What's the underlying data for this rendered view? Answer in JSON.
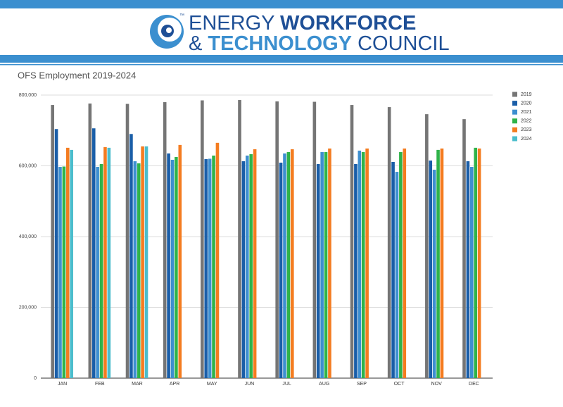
{
  "header": {
    "word1": "ENERGY",
    "word2": "WORKFORCE",
    "word3": "& ",
    "word4": "TECHNOLOGY",
    "word5": "COUNCIL",
    "tm": "™"
  },
  "chart_data": {
    "type": "bar",
    "title": "OFS Employment 2019-2024",
    "categories": [
      "JAN",
      "FEB",
      "MAR",
      "APR",
      "MAY",
      "JUN",
      "JUL",
      "AUG",
      "SEP",
      "OCT",
      "NOV",
      "DEC"
    ],
    "series": [
      {
        "name": "2019",
        "color": "#757575",
        "values": [
          772000,
          776000,
          775000,
          780000,
          785000,
          786000,
          782000,
          781000,
          772000,
          766000,
          746000,
          732000
        ]
      },
      {
        "name": "2020",
        "color": "#1a5ea8",
        "values": [
          704000,
          706000,
          690000,
          635000,
          619000,
          613000,
          609000,
          605000,
          605000,
          611000,
          615000,
          613000
        ]
      },
      {
        "name": "2021",
        "color": "#3e8fd0",
        "values": [
          597000,
          597000,
          613000,
          617000,
          620000,
          629000,
          635000,
          639000,
          643000,
          583000,
          589000,
          597000
        ]
      },
      {
        "name": "2022",
        "color": "#2fb34a",
        "values": [
          598000,
          605000,
          607000,
          625000,
          629000,
          633000,
          639000,
          639000,
          639000,
          639000,
          645000,
          651000
        ]
      },
      {
        "name": "2023",
        "color": "#f47c20",
        "values": [
          651000,
          653000,
          655000,
          659000,
          665000,
          647000,
          647000,
          649000,
          649000,
          649000,
          649000,
          649000
        ]
      },
      {
        "name": "2024",
        "color": "#4bbdcc",
        "values": [
          645000,
          651000,
          655000,
          null,
          null,
          null,
          null,
          null,
          null,
          null,
          null,
          null
        ]
      }
    ],
    "ylim": [
      0,
      800000
    ],
    "yticks": [
      0,
      {
        "value": 200000,
        "label": "200,000"
      },
      {
        "value": 400000,
        "label": "400,000"
      },
      {
        "value": 600000,
        "label": "600,000"
      },
      {
        "value": 800000,
        "label": "800,000"
      }
    ],
    "grid": true,
    "legend": "right"
  }
}
